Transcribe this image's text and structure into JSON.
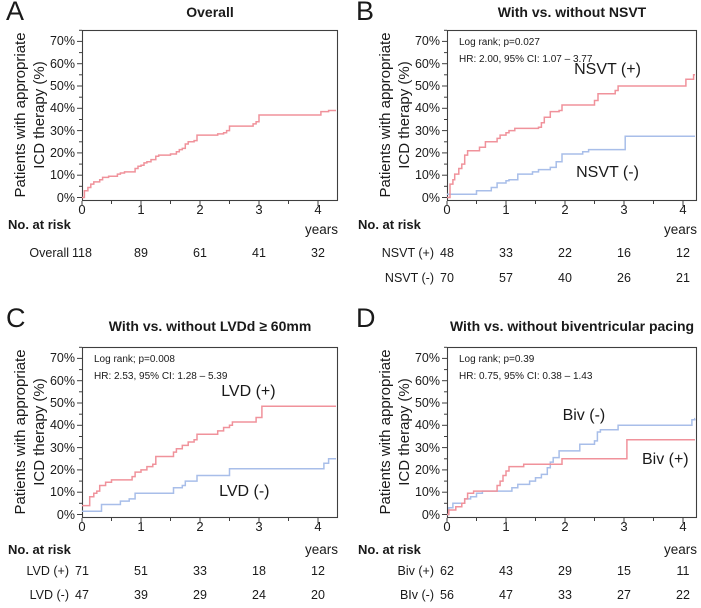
{
  "figure": {
    "ylabel_line1": "Patients with appropriate",
    "ylabel_line2": "ICD therapy (%)",
    "risk_header": "No. at risk",
    "y_tick_labels": [
      "70%",
      "60%",
      "50%",
      "40%",
      "30%",
      "20%",
      "10%",
      "0%"
    ],
    "colors": {
      "curve_red": "#F0929B",
      "curve_blue": "#A8BEE9",
      "axis": "#3F3F3F",
      "text": "#1A1A1A",
      "background": "#FFFFFF"
    }
  },
  "chart_data": [
    {
      "letter": "A",
      "title": "Overall",
      "type": "line",
      "x_unit": "years",
      "xlim": [
        0,
        4.3
      ],
      "ylim": [
        0,
        76
      ],
      "x_ticks": [
        0,
        1,
        2,
        3,
        4
      ],
      "annotations": [],
      "series": [
        {
          "name": "Overall",
          "color": "red",
          "label": null,
          "label_pos": null,
          "points": [
            [
              0,
              0
            ],
            [
              0.04,
              3
            ],
            [
              0.1,
              4.5
            ],
            [
              0.15,
              6
            ],
            [
              0.2,
              7
            ],
            [
              0.3,
              8
            ],
            [
              0.35,
              9
            ],
            [
              0.45,
              9.5
            ],
            [
              0.6,
              10.5
            ],
            [
              0.65,
              11
            ],
            [
              0.72,
              11.5
            ],
            [
              0.9,
              13
            ],
            [
              0.95,
              14
            ],
            [
              1.0,
              14.5
            ],
            [
              1.05,
              15.5
            ],
            [
              1.1,
              16
            ],
            [
              1.17,
              17
            ],
            [
              1.25,
              18.5
            ],
            [
              1.3,
              19
            ],
            [
              1.5,
              19.5
            ],
            [
              1.6,
              20.5
            ],
            [
              1.65,
              21.5
            ],
            [
              1.7,
              22
            ],
            [
              1.75,
              24
            ],
            [
              1.8,
              25
            ],
            [
              1.9,
              25.5
            ],
            [
              1.95,
              28
            ],
            [
              2.3,
              28.5
            ],
            [
              2.4,
              29
            ],
            [
              2.45,
              30
            ],
            [
              2.5,
              32
            ],
            [
              2.9,
              33
            ],
            [
              2.95,
              34
            ],
            [
              3.0,
              37
            ],
            [
              4.05,
              38.5
            ],
            [
              4.18,
              39
            ]
          ]
        }
      ],
      "at_risk": [
        {
          "label": "Overall",
          "values": [
            118,
            89,
            61,
            41,
            32
          ]
        }
      ]
    },
    {
      "letter": "B",
      "title": "With vs. without NSVT",
      "type": "line",
      "x_unit": "years",
      "xlim": [
        0,
        4.2
      ],
      "ylim": [
        0,
        76
      ],
      "x_ticks": [
        0,
        1,
        2,
        3,
        4
      ],
      "annotations": [
        "Log rank; p=0.027",
        "HR: 2.00, 95% CI: 1.07 – 3.77"
      ],
      "series": [
        {
          "name": "NSVT (+)",
          "color": "red",
          "label": "NSVT (+)",
          "label_pos": [
            2.72,
            57
          ],
          "points": [
            [
              0,
              0
            ],
            [
              0.05,
              6
            ],
            [
              0.1,
              8
            ],
            [
              0.13,
              10.5
            ],
            [
              0.2,
              13
            ],
            [
              0.25,
              15
            ],
            [
              0.3,
              19
            ],
            [
              0.35,
              21
            ],
            [
              0.55,
              22.5
            ],
            [
              0.65,
              25
            ],
            [
              0.85,
              26.5
            ],
            [
              0.9,
              28
            ],
            [
              1.0,
              29
            ],
            [
              1.05,
              30
            ],
            [
              1.15,
              31
            ],
            [
              1.55,
              31.5
            ],
            [
              1.6,
              33.5
            ],
            [
              1.65,
              36
            ],
            [
              1.75,
              38.5
            ],
            [
              1.9,
              39
            ],
            [
              1.95,
              41.5
            ],
            [
              2.5,
              43.5
            ],
            [
              2.56,
              46.5
            ],
            [
              2.85,
              48
            ],
            [
              2.9,
              50
            ],
            [
              4.05,
              53
            ],
            [
              4.18,
              55
            ]
          ]
        },
        {
          "name": "NSVT (-)",
          "color": "blue",
          "label": "NSVT (-)",
          "label_pos": [
            2.72,
            11
          ],
          "points": [
            [
              0,
              1.5
            ],
            [
              0.5,
              3
            ],
            [
              0.75,
              4.5
            ],
            [
              0.85,
              6.5
            ],
            [
              1.0,
              7.5
            ],
            [
              1.05,
              8
            ],
            [
              1.2,
              10.5
            ],
            [
              1.45,
              11.5
            ],
            [
              1.55,
              12.5
            ],
            [
              1.75,
              13.5
            ],
            [
              1.85,
              16
            ],
            [
              1.95,
              19.5
            ],
            [
              2.3,
              20.5
            ],
            [
              2.4,
              21.5
            ],
            [
              3.02,
              27.5
            ]
          ]
        }
      ],
      "at_risk": [
        {
          "label": "NSVT (+)",
          "values": [
            48,
            33,
            22,
            16,
            12
          ]
        },
        {
          "label": "NSVT (-)",
          "values": [
            70,
            57,
            40,
            26,
            21
          ]
        }
      ]
    },
    {
      "letter": "C",
      "title": "With vs. without LVDd ≥ 60mm",
      "type": "line",
      "x_unit": "years",
      "xlim": [
        0,
        4.3
      ],
      "ylim": [
        0,
        76
      ],
      "x_ticks": [
        0,
        1,
        2,
        3,
        4
      ],
      "annotations": [
        "Log rank; p=0.008",
        "HR: 2.53, 95% CI: 1.28 – 5.39"
      ],
      "series": [
        {
          "name": "LVD (+)",
          "color": "red",
          "label": "LVD (+)",
          "label_pos": [
            2.82,
            55
          ],
          "points": [
            [
              0,
              4
            ],
            [
              0.13,
              8
            ],
            [
              0.2,
              9.5
            ],
            [
              0.25,
              10.5
            ],
            [
              0.3,
              13
            ],
            [
              0.4,
              14.5
            ],
            [
              0.5,
              15.5
            ],
            [
              0.85,
              17
            ],
            [
              0.9,
              19
            ],
            [
              1.0,
              20
            ],
            [
              1.1,
              21.5
            ],
            [
              1.2,
              22.5
            ],
            [
              1.25,
              26
            ],
            [
              1.55,
              28
            ],
            [
              1.6,
              29.5
            ],
            [
              1.7,
              31
            ],
            [
              1.8,
              32.5
            ],
            [
              1.9,
              33.5
            ],
            [
              1.95,
              36
            ],
            [
              2.3,
              37.5
            ],
            [
              2.4,
              39
            ],
            [
              2.5,
              40
            ],
            [
              2.55,
              41.5
            ],
            [
              2.95,
              43.5
            ],
            [
              3.05,
              48.5
            ]
          ]
        },
        {
          "name": "LVD (-)",
          "color": "blue",
          "label": "LVD (-)",
          "label_pos": [
            2.75,
            10
          ],
          "points": [
            [
              0,
              1.5
            ],
            [
              0.33,
              4.5
            ],
            [
              0.65,
              6
            ],
            [
              0.8,
              7
            ],
            [
              0.9,
              9.5
            ],
            [
              1.55,
              12
            ],
            [
              1.7,
              13
            ],
            [
              1.75,
              15
            ],
            [
              1.95,
              17.5
            ],
            [
              2.5,
              20.5
            ],
            [
              4.1,
              23
            ],
            [
              4.18,
              25
            ]
          ]
        }
      ],
      "at_risk": [
        {
          "label": "LVD (+)",
          "values": [
            71,
            51,
            33,
            18,
            12
          ]
        },
        {
          "label": "LVD (-)",
          "values": [
            47,
            39,
            29,
            24,
            20
          ]
        }
      ]
    },
    {
      "letter": "D",
      "title": "With vs. without biventricular pacing",
      "type": "line",
      "x_unit": "years",
      "xlim": [
        0,
        4.2
      ],
      "ylim": [
        0,
        76
      ],
      "x_ticks": [
        0,
        1,
        2,
        3,
        4
      ],
      "annotations": [
        "Log rank; p=0.39",
        "HR: 0.75, 95% CI: 0.38 – 1.43"
      ],
      "series": [
        {
          "name": "Biv (+)",
          "color": "red",
          "label": "Biv (+)",
          "label_pos": [
            3.7,
            24.5
          ],
          "points": [
            [
              0,
              0
            ],
            [
              0.03,
              2
            ],
            [
              0.15,
              3.5
            ],
            [
              0.25,
              5
            ],
            [
              0.3,
              7
            ],
            [
              0.35,
              9.5
            ],
            [
              0.45,
              10.5
            ],
            [
              0.85,
              13
            ],
            [
              0.9,
              15
            ],
            [
              0.95,
              17.5
            ],
            [
              1.0,
              19.5
            ],
            [
              1.05,
              21.5
            ],
            [
              1.3,
              22.5
            ],
            [
              1.95,
              25
            ],
            [
              3.05,
              33.5
            ]
          ]
        },
        {
          "name": "Biv (-)",
          "color": "blue",
          "label": "Biv (-)",
          "label_pos": [
            2.32,
            44
          ],
          "points": [
            [
              0,
              0
            ],
            [
              0.03,
              3
            ],
            [
              0.1,
              5
            ],
            [
              0.3,
              7
            ],
            [
              0.4,
              8
            ],
            [
              0.5,
              9.5
            ],
            [
              0.6,
              10.5
            ],
            [
              1.1,
              12
            ],
            [
              1.2,
              13.5
            ],
            [
              1.4,
              15
            ],
            [
              1.5,
              16.5
            ],
            [
              1.6,
              18
            ],
            [
              1.7,
              21
            ],
            [
              1.75,
              23.5
            ],
            [
              1.8,
              25.5
            ],
            [
              1.9,
              28.5
            ],
            [
              2.25,
              31.5
            ],
            [
              2.5,
              33
            ],
            [
              2.55,
              37
            ],
            [
              2.6,
              38
            ],
            [
              2.9,
              40
            ],
            [
              4.15,
              42.5
            ],
            [
              4.2,
              43
            ]
          ]
        }
      ],
      "at_risk": [
        {
          "label": "Biv (+)",
          "values": [
            62,
            43,
            29,
            15,
            11
          ]
        },
        {
          "label": "BIv (-)",
          "values": [
            56,
            47,
            33,
            27,
            22
          ]
        }
      ]
    }
  ]
}
